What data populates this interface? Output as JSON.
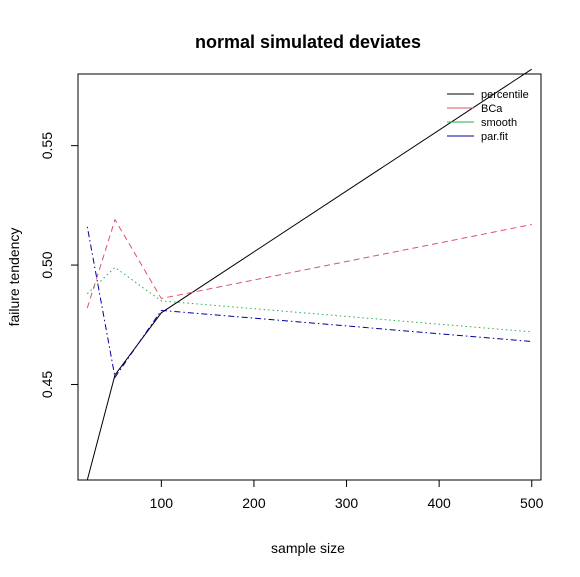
{
  "chart_data": {
    "type": "line",
    "title": "normal simulated deviates",
    "xlabel": "sample size",
    "ylabel": "failure tendency",
    "x": [
      20,
      50,
      100,
      500
    ],
    "xlim": [
      10,
      510
    ],
    "ylim": [
      0.41,
      0.58
    ],
    "xticks": [
      100,
      200,
      300,
      400,
      500
    ],
    "yticks": [
      0.45,
      0.5,
      0.55
    ],
    "ytick_labels": [
      "0.45",
      "0.50",
      "0.55"
    ],
    "legend_position": "top-right",
    "series": [
      {
        "name": "percentile",
        "color": "#000000",
        "dash": "solid",
        "values": [
          0.41,
          0.454,
          0.48,
          0.582
        ]
      },
      {
        "name": "BCa",
        "color": "#df536b",
        "dash": "dashed",
        "values": [
          0.482,
          0.519,
          0.486,
          0.517
        ]
      },
      {
        "name": "smooth",
        "color": "#22b14c",
        "dash": "dotted",
        "values": [
          0.488,
          0.499,
          0.485,
          0.472
        ]
      },
      {
        "name": "par.fit",
        "color": "#0000a0",
        "dash": "dotdash",
        "values": [
          0.516,
          0.453,
          0.481,
          0.468
        ]
      }
    ]
  }
}
